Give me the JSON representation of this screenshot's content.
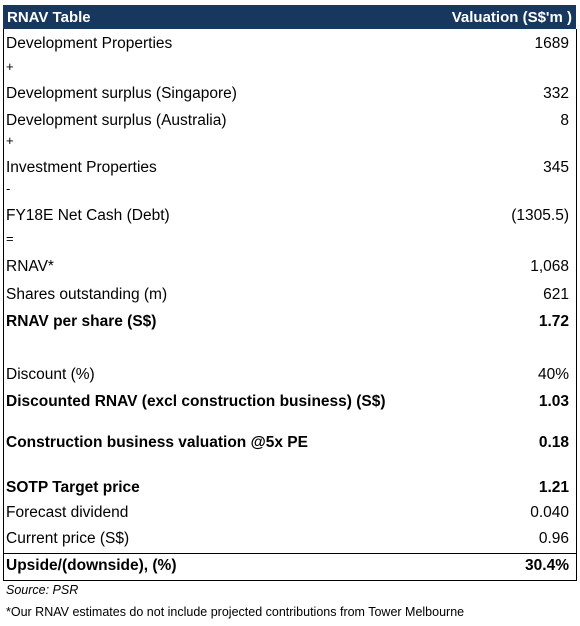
{
  "table": {
    "title": "RNAV Table",
    "value_header": "Valuation (S$'m )",
    "rows": [
      [
        "Development Properties",
        "1689"
      ],
      [
        "+"
      ],
      [
        "Development surplus (Singapore)",
        "332"
      ],
      [
        "Development surplus (Australia)",
        "8"
      ],
      [
        "+"
      ],
      [
        "Investment Properties",
        "345"
      ],
      [
        "-"
      ],
      [
        "FY18E Net Cash (Debt)",
        "(1305.5)"
      ],
      [
        "="
      ],
      [
        "RNAV*",
        "1,068"
      ],
      [
        "Shares outstanding (m)",
        "621"
      ],
      [
        "RNAV per share (S$)",
        "1.72"
      ],
      [
        "Discount (%)",
        "40%"
      ],
      [
        "Discounted RNAV (excl construction business) (S$)",
        "1.03"
      ],
      [
        "Construction business valuation @5x PE",
        "0.18"
      ],
      [
        "SOTP Target price",
        "1.21"
      ],
      [
        "Forecast dividend",
        "0.040"
      ],
      [
        "Current price (S$)",
        "0.96"
      ],
      [
        "Upside/(downside), (%)",
        "30.4%"
      ]
    ]
  },
  "footnotes": {
    "source": "Source: PSR",
    "note": "*Our RNAV estimates do not include projected contributions from Tower Melbourne"
  }
}
